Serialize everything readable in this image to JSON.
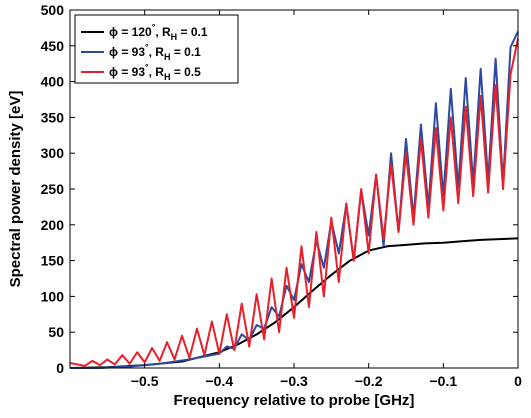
{
  "chart_data": {
    "type": "line",
    "xlabel": "Frequency relative to probe [GHz]",
    "ylabel": "Spectral power density [eV]",
    "xlim": [
      -0.6,
      0
    ],
    "ylim": [
      0,
      500
    ],
    "xticks": [
      -0.5,
      -0.4,
      -0.3,
      -0.2,
      -0.1,
      0
    ],
    "xtick_labels": [
      "−0.5",
      "−0.4",
      "−0.3",
      "−0.2",
      "−0.1",
      "0"
    ],
    "yticks": [
      0,
      50,
      100,
      150,
      200,
      250,
      300,
      350,
      400,
      450,
      500
    ],
    "grid": false,
    "legend_position": "top-left",
    "series": [
      {
        "name": "ϕ = 120°, R_H = 0.1",
        "legend": {
          "main": "ϕ = 120",
          "deg": "°",
          "mid": ", R",
          "sub": "H",
          "tail": " = 0.1"
        },
        "color": "#000000",
        "x": [
          -0.6,
          -0.55,
          -0.5,
          -0.45,
          -0.4,
          -0.375,
          -0.35,
          -0.325,
          -0.3,
          -0.275,
          -0.25,
          -0.225,
          -0.2,
          -0.175,
          -0.15,
          -0.125,
          -0.1,
          -0.075,
          -0.05,
          -0.025,
          0
        ],
        "y": [
          0,
          1,
          4,
          9,
          22,
          33,
          47,
          64,
          85,
          108,
          130,
          150,
          164,
          170,
          172,
          174,
          175,
          177,
          179,
          180,
          181
        ]
      },
      {
        "name": "ϕ = 93°, R_H = 0.1",
        "legend": {
          "main": "ϕ = 93",
          "deg": "°",
          "mid": ",   R",
          "sub": "H",
          "tail": " = 0.1"
        },
        "color": "#2e4a9e",
        "x": [
          -0.6,
          -0.58,
          -0.56,
          -0.54,
          -0.52,
          -0.5,
          -0.48,
          -0.46,
          -0.44,
          -0.42,
          -0.4,
          -0.39,
          -0.38,
          -0.37,
          -0.36,
          -0.35,
          -0.34,
          -0.33,
          -0.32,
          -0.31,
          -0.3,
          -0.29,
          -0.28,
          -0.27,
          -0.26,
          -0.25,
          -0.24,
          -0.23,
          -0.22,
          -0.21,
          -0.2,
          -0.19,
          -0.18,
          -0.17,
          -0.16,
          -0.15,
          -0.14,
          -0.13,
          -0.12,
          -0.11,
          -0.1,
          -0.09,
          -0.08,
          -0.07,
          -0.06,
          -0.05,
          -0.04,
          -0.03,
          -0.02,
          -0.01,
          0
        ],
        "y": [
          0,
          0,
          0,
          1,
          2,
          4,
          6,
          9,
          12,
          16,
          20,
          30,
          27,
          47,
          39,
          60,
          55,
          85,
          72,
          115,
          95,
          145,
          120,
          178,
          140,
          205,
          160,
          228,
          150,
          248,
          185,
          270,
          170,
          300,
          190,
          320,
          210,
          340,
          225,
          370,
          240,
          390,
          252,
          405,
          258,
          418,
          262,
          432,
          258,
          448,
          470
        ]
      },
      {
        "name": "ϕ = 93°, R_H = 0.5",
        "legend": {
          "main": "ϕ = 93",
          "deg": "°",
          "mid": ",   R",
          "sub": "H",
          "tail": " = 0.5"
        },
        "color": "#e8202a",
        "x": [
          -0.6,
          -0.59,
          -0.58,
          -0.57,
          -0.56,
          -0.55,
          -0.54,
          -0.53,
          -0.52,
          -0.51,
          -0.5,
          -0.49,
          -0.48,
          -0.47,
          -0.46,
          -0.45,
          -0.44,
          -0.43,
          -0.42,
          -0.41,
          -0.4,
          -0.39,
          -0.38,
          -0.37,
          -0.36,
          -0.35,
          -0.34,
          -0.33,
          -0.32,
          -0.31,
          -0.3,
          -0.29,
          -0.28,
          -0.27,
          -0.26,
          -0.25,
          -0.24,
          -0.23,
          -0.22,
          -0.21,
          -0.2,
          -0.19,
          -0.18,
          -0.17,
          -0.16,
          -0.15,
          -0.14,
          -0.13,
          -0.12,
          -0.11,
          -0.1,
          -0.09,
          -0.08,
          -0.07,
          -0.06,
          -0.05,
          -0.04,
          -0.03,
          -0.02,
          -0.01,
          0
        ],
        "y": [
          7,
          5,
          3,
          10,
          4,
          12,
          5,
          18,
          6,
          22,
          8,
          28,
          10,
          36,
          12,
          45,
          14,
          55,
          18,
          65,
          20,
          75,
          25,
          90,
          30,
          103,
          40,
          125,
          50,
          140,
          70,
          170,
          85,
          190,
          100,
          210,
          120,
          230,
          150,
          250,
          160,
          270,
          180,
          285,
          190,
          300,
          200,
          320,
          210,
          335,
          220,
          350,
          230,
          365,
          240,
          380,
          245,
          395,
          250,
          410,
          460
        ]
      }
    ]
  }
}
